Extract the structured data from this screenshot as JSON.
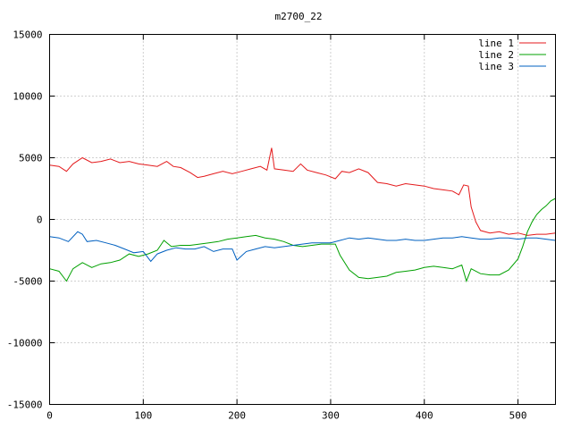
{
  "chart_data": {
    "type": "line",
    "title": "m2700_22",
    "xlabel": "",
    "ylabel": "",
    "xlim": [
      0,
      540
    ],
    "ylim": [
      -15000,
      15000
    ],
    "xticks": [
      0,
      100,
      200,
      300,
      400,
      500
    ],
    "yticks": [
      -15000,
      -10000,
      -5000,
      0,
      5000,
      10000,
      15000
    ],
    "grid": true,
    "legend_position": "top-right",
    "series": [
      {
        "name": "line 1",
        "color": "#e41a1c",
        "points": [
          [
            0,
            4400
          ],
          [
            10,
            4300
          ],
          [
            18,
            3900
          ],
          [
            25,
            4500
          ],
          [
            35,
            5000
          ],
          [
            45,
            4600
          ],
          [
            55,
            4700
          ],
          [
            65,
            4900
          ],
          [
            75,
            4600
          ],
          [
            85,
            4700
          ],
          [
            95,
            4500
          ],
          [
            105,
            4400
          ],
          [
            115,
            4300
          ],
          [
            125,
            4700
          ],
          [
            132,
            4300
          ],
          [
            140,
            4200
          ],
          [
            150,
            3800
          ],
          [
            158,
            3400
          ],
          [
            165,
            3500
          ],
          [
            175,
            3700
          ],
          [
            185,
            3900
          ],
          [
            195,
            3700
          ],
          [
            205,
            3900
          ],
          [
            215,
            4100
          ],
          [
            225,
            4300
          ],
          [
            232,
            4000
          ],
          [
            237,
            5800
          ],
          [
            240,
            4100
          ],
          [
            250,
            4000
          ],
          [
            260,
            3900
          ],
          [
            268,
            4500
          ],
          [
            275,
            4000
          ],
          [
            285,
            3800
          ],
          [
            295,
            3600
          ],
          [
            305,
            3300
          ],
          [
            312,
            3900
          ],
          [
            320,
            3800
          ],
          [
            330,
            4100
          ],
          [
            340,
            3800
          ],
          [
            350,
            3000
          ],
          [
            360,
            2900
          ],
          [
            370,
            2700
          ],
          [
            380,
            2900
          ],
          [
            390,
            2800
          ],
          [
            400,
            2700
          ],
          [
            410,
            2500
          ],
          [
            420,
            2400
          ],
          [
            430,
            2300
          ],
          [
            437,
            2000
          ],
          [
            442,
            2800
          ],
          [
            447,
            2700
          ],
          [
            450,
            1000
          ],
          [
            455,
            -200
          ],
          [
            460,
            -900
          ],
          [
            470,
            -1100
          ],
          [
            480,
            -1000
          ],
          [
            490,
            -1200
          ],
          [
            500,
            -1100
          ],
          [
            510,
            -1300
          ],
          [
            520,
            -1200
          ],
          [
            530,
            -1200
          ],
          [
            540,
            -1100
          ]
        ]
      },
      {
        "name": "line 2",
        "color": "#00a000",
        "points": [
          [
            0,
            -4000
          ],
          [
            10,
            -4200
          ],
          [
            18,
            -5000
          ],
          [
            25,
            -4000
          ],
          [
            35,
            -3500
          ],
          [
            45,
            -3900
          ],
          [
            55,
            -3600
          ],
          [
            65,
            -3500
          ],
          [
            75,
            -3300
          ],
          [
            85,
            -2800
          ],
          [
            95,
            -3000
          ],
          [
            105,
            -2800
          ],
          [
            115,
            -2500
          ],
          [
            122,
            -1700
          ],
          [
            130,
            -2200
          ],
          [
            140,
            -2100
          ],
          [
            150,
            -2100
          ],
          [
            160,
            -2000
          ],
          [
            170,
            -1900
          ],
          [
            180,
            -1800
          ],
          [
            190,
            -1600
          ],
          [
            200,
            -1500
          ],
          [
            210,
            -1400
          ],
          [
            220,
            -1300
          ],
          [
            230,
            -1500
          ],
          [
            240,
            -1600
          ],
          [
            250,
            -1800
          ],
          [
            260,
            -2100
          ],
          [
            270,
            -2200
          ],
          [
            280,
            -2100
          ],
          [
            290,
            -2000
          ],
          [
            300,
            -2000
          ],
          [
            305,
            -2000
          ],
          [
            310,
            -2900
          ],
          [
            320,
            -4100
          ],
          [
            330,
            -4700
          ],
          [
            340,
            -4800
          ],
          [
            350,
            -4700
          ],
          [
            360,
            -4600
          ],
          [
            370,
            -4300
          ],
          [
            380,
            -4200
          ],
          [
            390,
            -4100
          ],
          [
            400,
            -3900
          ],
          [
            410,
            -3800
          ],
          [
            420,
            -3900
          ],
          [
            430,
            -4000
          ],
          [
            440,
            -3700
          ],
          [
            445,
            -5000
          ],
          [
            450,
            -4000
          ],
          [
            460,
            -4400
          ],
          [
            470,
            -4500
          ],
          [
            480,
            -4500
          ],
          [
            490,
            -4100
          ],
          [
            500,
            -3200
          ],
          [
            505,
            -2200
          ],
          [
            510,
            -1000
          ],
          [
            515,
            -200
          ],
          [
            520,
            400
          ],
          [
            525,
            800
          ],
          [
            530,
            1100
          ],
          [
            535,
            1500
          ],
          [
            540,
            1700
          ]
        ]
      },
      {
        "name": "line 3",
        "color": "#0060c0",
        "points": [
          [
            0,
            -1400
          ],
          [
            10,
            -1500
          ],
          [
            20,
            -1800
          ],
          [
            30,
            -1000
          ],
          [
            35,
            -1200
          ],
          [
            40,
            -1800
          ],
          [
            50,
            -1700
          ],
          [
            60,
            -1900
          ],
          [
            70,
            -2100
          ],
          [
            80,
            -2400
          ],
          [
            90,
            -2700
          ],
          [
            100,
            -2600
          ],
          [
            108,
            -3400
          ],
          [
            115,
            -2800
          ],
          [
            125,
            -2500
          ],
          [
            135,
            -2300
          ],
          [
            145,
            -2400
          ],
          [
            155,
            -2400
          ],
          [
            165,
            -2200
          ],
          [
            175,
            -2600
          ],
          [
            185,
            -2400
          ],
          [
            195,
            -2400
          ],
          [
            200,
            -3300
          ],
          [
            210,
            -2600
          ],
          [
            220,
            -2400
          ],
          [
            230,
            -2200
          ],
          [
            240,
            -2300
          ],
          [
            250,
            -2200
          ],
          [
            260,
            -2100
          ],
          [
            270,
            -2000
          ],
          [
            280,
            -1900
          ],
          [
            290,
            -1900
          ],
          [
            300,
            -1900
          ],
          [
            310,
            -1700
          ],
          [
            320,
            -1500
          ],
          [
            330,
            -1600
          ],
          [
            340,
            -1500
          ],
          [
            350,
            -1600
          ],
          [
            360,
            -1700
          ],
          [
            370,
            -1700
          ],
          [
            380,
            -1600
          ],
          [
            390,
            -1700
          ],
          [
            400,
            -1700
          ],
          [
            410,
            -1600
          ],
          [
            420,
            -1500
          ],
          [
            430,
            -1500
          ],
          [
            440,
            -1400
          ],
          [
            450,
            -1500
          ],
          [
            460,
            -1600
          ],
          [
            470,
            -1600
          ],
          [
            480,
            -1500
          ],
          [
            490,
            -1500
          ],
          [
            500,
            -1600
          ],
          [
            510,
            -1500
          ],
          [
            520,
            -1500
          ],
          [
            530,
            -1600
          ],
          [
            540,
            -1700
          ]
        ]
      }
    ]
  }
}
